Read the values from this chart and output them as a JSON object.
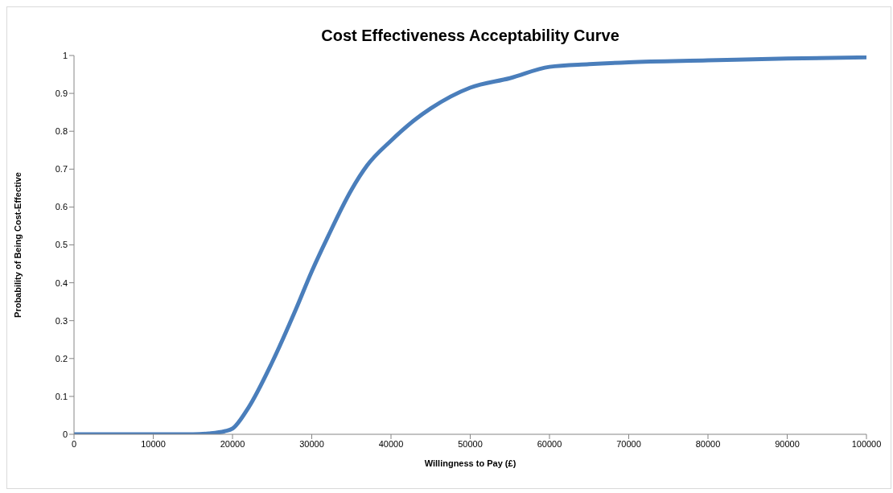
{
  "chart_data": {
    "type": "line",
    "title": "Cost Effectiveness Acceptability Curve",
    "xlabel": "Willingness to Pay (£)",
    "ylabel": "Probability of Being Cost-Effective",
    "x": [
      0,
      5000,
      10000,
      15000,
      17000,
      19000,
      20000,
      22000,
      25000,
      28000,
      30000,
      32000,
      35000,
      37000,
      40000,
      43000,
      45000,
      50000,
      55000,
      60000,
      65000,
      70000,
      80000,
      90000,
      100000
    ],
    "series": [
      {
        "color": "#4a7ebb",
        "values": [
          0,
          0,
          0,
          0,
          0.002,
          0.008,
          0.015,
          0.07,
          0.19,
          0.33,
          0.43,
          0.52,
          0.645,
          0.71,
          0.775,
          0.83,
          0.86,
          0.915,
          0.94,
          0.97,
          0.977,
          0.982,
          0.987,
          0.992,
          0.995
        ]
      }
    ],
    "xlim": [
      0,
      100000
    ],
    "xticks": [
      0,
      10000,
      20000,
      30000,
      40000,
      50000,
      60000,
      70000,
      80000,
      90000,
      100000
    ],
    "ylim": [
      0,
      1
    ],
    "yticks": [
      0,
      0.1,
      0.2,
      0.3,
      0.4,
      0.5,
      0.6,
      0.7,
      0.8,
      0.9,
      1
    ],
    "grid": false,
    "legend": false
  }
}
